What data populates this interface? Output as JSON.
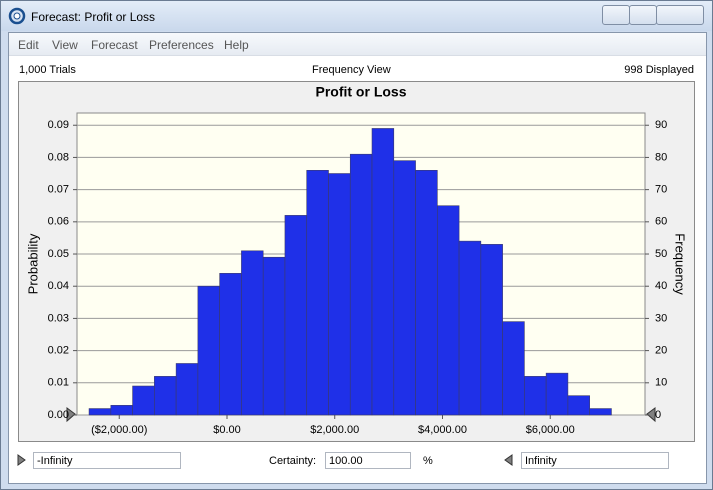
{
  "window": {
    "title": "Forecast: Profit or Loss",
    "menu": [
      "Edit",
      "View",
      "Forecast",
      "Preferences",
      "Help"
    ]
  },
  "info": {
    "trials": "1,000 Trials",
    "view": "Frequency View",
    "displayed": "998 Displayed"
  },
  "chart_data": {
    "type": "histogram",
    "title": "Profit or Loss",
    "y_label": "Probability",
    "y2_label": "Frequency",
    "bins": [
      -2560,
      -2156,
      -1752,
      -1348,
      -944,
      -540,
      -136,
      268,
      672,
      1076,
      1480,
      1884,
      2288,
      2692,
      3096,
      3500,
      3904,
      4308,
      4712,
      5116,
      5520,
      5924,
      6328,
      6732,
      7136
    ],
    "values": [
      0.002,
      0.003,
      0.009,
      0.012,
      0.016,
      0.04,
      0.044,
      0.051,
      0.049,
      0.062,
      0.076,
      0.075,
      0.081,
      0.089,
      0.079,
      0.076,
      0.065,
      0.054,
      0.053,
      0.029,
      0.012,
      0.013,
      0.006,
      0.002
    ],
    "color": "#1f30e8",
    "xlim": [
      -2784,
      7759
    ],
    "xticks": [
      {
        "value": -2000,
        "label": "($2,000.00)"
      },
      {
        "value": 0,
        "label": "$0.00"
      },
      {
        "value": 2000,
        "label": "$2,000.00"
      },
      {
        "value": 4000,
        "label": "$4,000.00"
      },
      {
        "value": 6000,
        "label": "$6,000.00"
      }
    ],
    "ylim": [
      0,
      0.0938
    ],
    "yticks": [
      {
        "value": 0,
        "label": "0.00"
      },
      0.01,
      0.02,
      0.03,
      0.04,
      0.05,
      0.06,
      0.07,
      0.08,
      0.09
    ],
    "y2lim": [
      0,
      93.8
    ],
    "y2ticks": [
      0,
      10,
      20,
      30,
      40,
      50,
      60,
      70,
      80,
      90
    ],
    "grid": true
  },
  "footer": {
    "left_value": "-Infinity",
    "certainty_label": "Certainty:",
    "certainty_value": "100.00",
    "percent": "%",
    "right_value": "Infinity"
  }
}
